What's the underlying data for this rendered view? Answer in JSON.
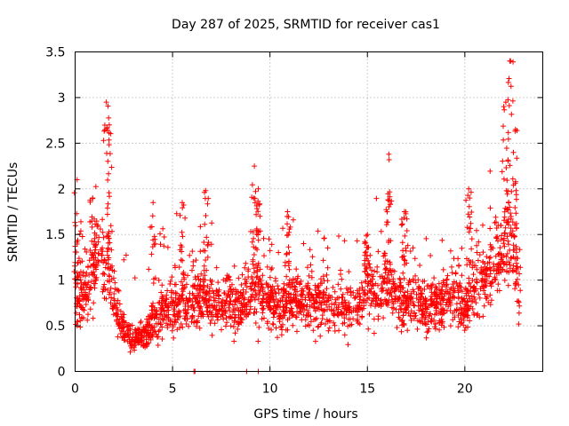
{
  "chart_data": {
    "type": "scatter",
    "title": "Day 287 of 2025, SRMTID for receiver cas1",
    "xlabel": "GPS time / hours",
    "ylabel": "SRMTID / TECUs",
    "xlim": [
      0,
      24
    ],
    "ylim": [
      0,
      3.5
    ],
    "xticks": [
      0,
      5,
      10,
      15,
      20
    ],
    "xtick_labels": [
      "0",
      "5",
      "10",
      "15",
      "20"
    ],
    "yticks": [
      0,
      0.5,
      1,
      1.5,
      2,
      2.5,
      3,
      3.5
    ],
    "ytick_labels": [
      "0",
      "0.5",
      "1",
      "1.5",
      "2",
      "2.5",
      "3",
      "3.5"
    ],
    "grid": true,
    "marker": "plus",
    "color": "#ff0000",
    "series": [
      {
        "name": "cas1",
        "trend": [
          [
            0.0,
            0.85
          ],
          [
            0.5,
            0.8
          ],
          [
            1.0,
            1.2
          ],
          [
            1.5,
            1.3
          ],
          [
            1.8,
            1.1
          ],
          [
            2.2,
            0.6
          ],
          [
            2.8,
            0.35
          ],
          [
            3.5,
            0.4
          ],
          [
            4.5,
            0.65
          ],
          [
            5.5,
            0.75
          ],
          [
            6.5,
            0.8
          ],
          [
            7.5,
            0.7
          ],
          [
            8.5,
            0.75
          ],
          [
            9.5,
            0.85
          ],
          [
            10.5,
            0.7
          ],
          [
            11.5,
            0.8
          ],
          [
            12.5,
            0.75
          ],
          [
            13.5,
            0.7
          ],
          [
            14.5,
            0.7
          ],
          [
            15.0,
            1.0
          ],
          [
            15.5,
            0.85
          ],
          [
            16.0,
            0.95
          ],
          [
            16.5,
            0.8
          ],
          [
            17.5,
            0.75
          ],
          [
            18.5,
            0.7
          ],
          [
            19.5,
            0.85
          ],
          [
            20.0,
            0.7
          ],
          [
            21.0,
            1.0
          ],
          [
            21.5,
            1.15
          ],
          [
            22.0,
            1.3
          ],
          [
            22.4,
            1.5
          ],
          [
            22.8,
            0.9
          ]
        ],
        "spikes": [
          {
            "x": 0.1,
            "peak": 2.1
          },
          {
            "x": 0.9,
            "peak": 1.9
          },
          {
            "x": 1.6,
            "peak": 2.95
          },
          {
            "x": 1.75,
            "peak": 2.7
          },
          {
            "x": 4.0,
            "peak": 1.85
          },
          {
            "x": 5.5,
            "peak": 1.85
          },
          {
            "x": 6.7,
            "peak": 1.98
          },
          {
            "x": 9.2,
            "peak": 2.25
          },
          {
            "x": 9.4,
            "peak": 2.0
          },
          {
            "x": 10.9,
            "peak": 1.75
          },
          {
            "x": 15.0,
            "peak": 1.5
          },
          {
            "x": 16.1,
            "peak": 2.38
          },
          {
            "x": 16.9,
            "peak": 1.75
          },
          {
            "x": 20.2,
            "peak": 2.0
          },
          {
            "x": 22.1,
            "peak": 2.95
          },
          {
            "x": 22.35,
            "peak": 3.4
          },
          {
            "x": 22.6,
            "peak": 2.65
          }
        ],
        "zero_points": [
          6.1,
          6.15,
          8.8,
          9.4
        ]
      }
    ]
  }
}
